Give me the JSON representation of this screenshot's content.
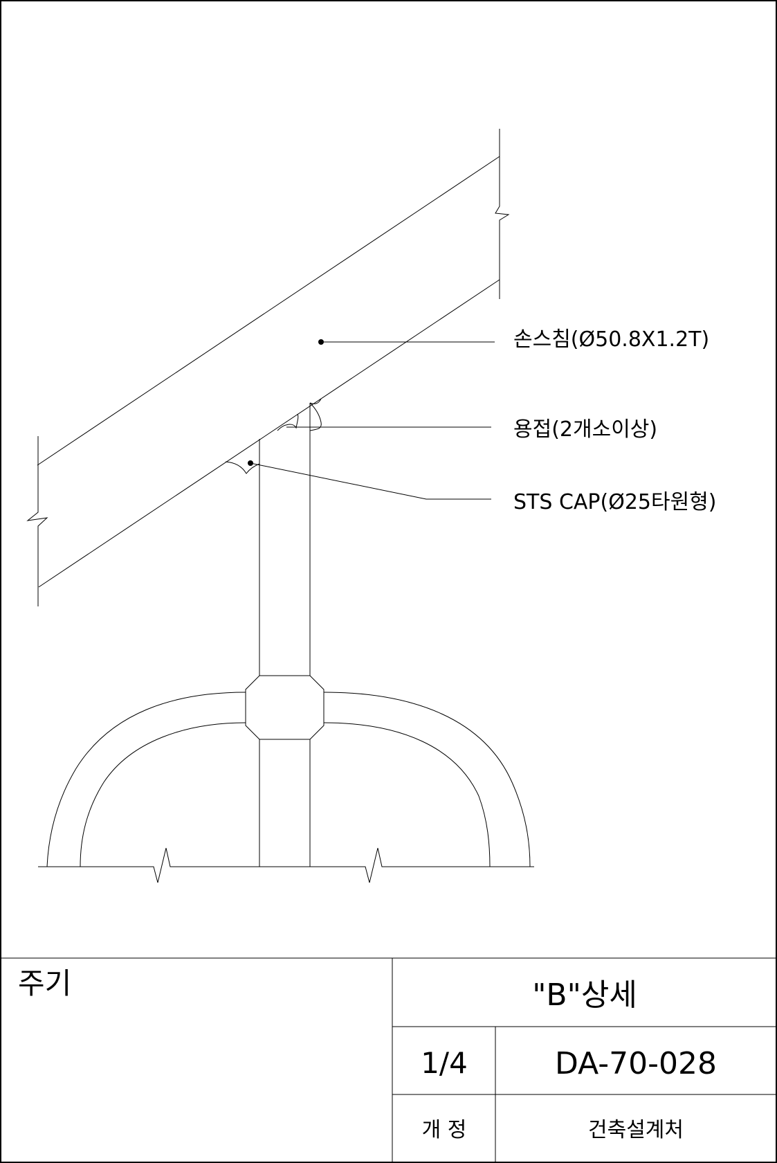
{
  "drawing": {
    "callouts": {
      "handrail": "손스침(Ø50.8X1.2T)",
      "weld": "용접(2개소이상)",
      "cap": "STS CAP(Ø25타원형)"
    }
  },
  "title_block": {
    "notes_label": "주기",
    "title": "\"B\"상세",
    "scale": "1/4",
    "drawing_number": "DA-70-028",
    "revision_label": "개 정",
    "department": "건축설계처"
  }
}
